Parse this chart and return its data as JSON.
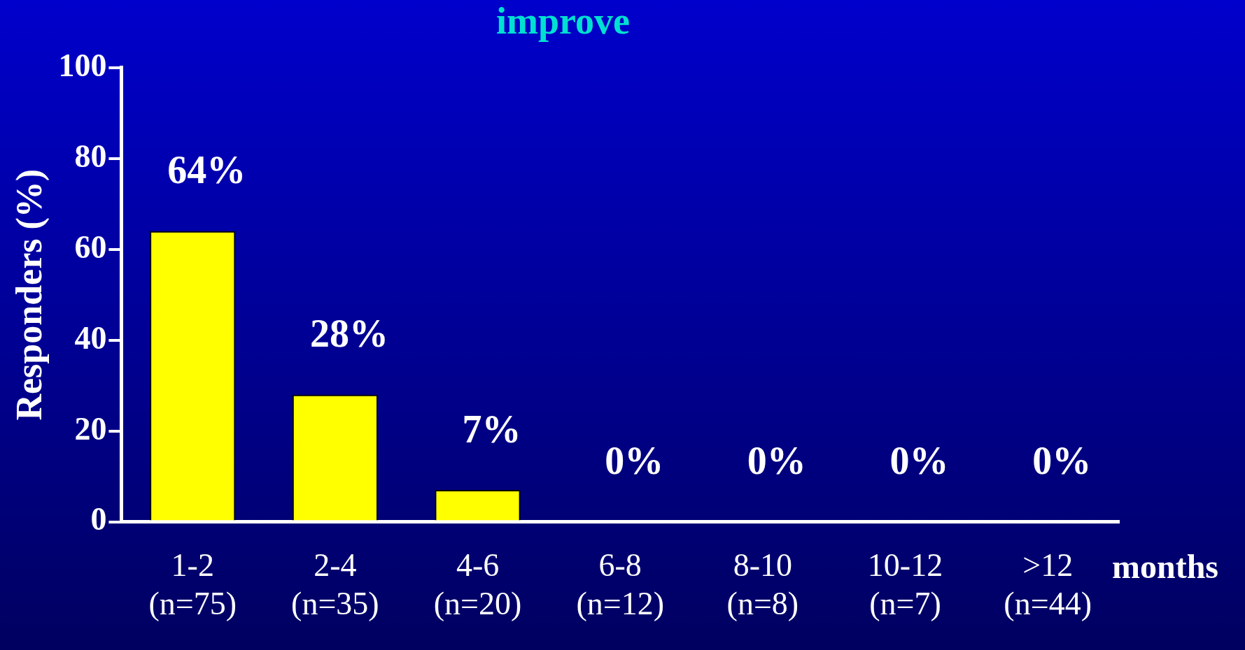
{
  "chart_data": {
    "type": "bar",
    "title": "improve",
    "ylabel": "Responders (%)",
    "xlabel": "months",
    "categories": [
      "1-2\n(n=75)",
      "2-4\n(n=35)",
      "4-6\n(n=20)",
      "6-8\n(n=12)",
      "8-10\n(n=8)",
      "10-12\n(n=7)",
      ">12\n(n=44)"
    ],
    "values": [
      64,
      28,
      7,
      0,
      0,
      0,
      0
    ],
    "color": "#ffff00",
    "data_labels": true,
    "value_labels": [
      "64%",
      "28%",
      "7%",
      "0%",
      "0%",
      "0%",
      "0%"
    ],
    "ylim": [
      0,
      100
    ],
    "yticks": [
      0,
      20,
      40,
      60,
      80,
      100
    ],
    "grid": false,
    "legend": false
  }
}
